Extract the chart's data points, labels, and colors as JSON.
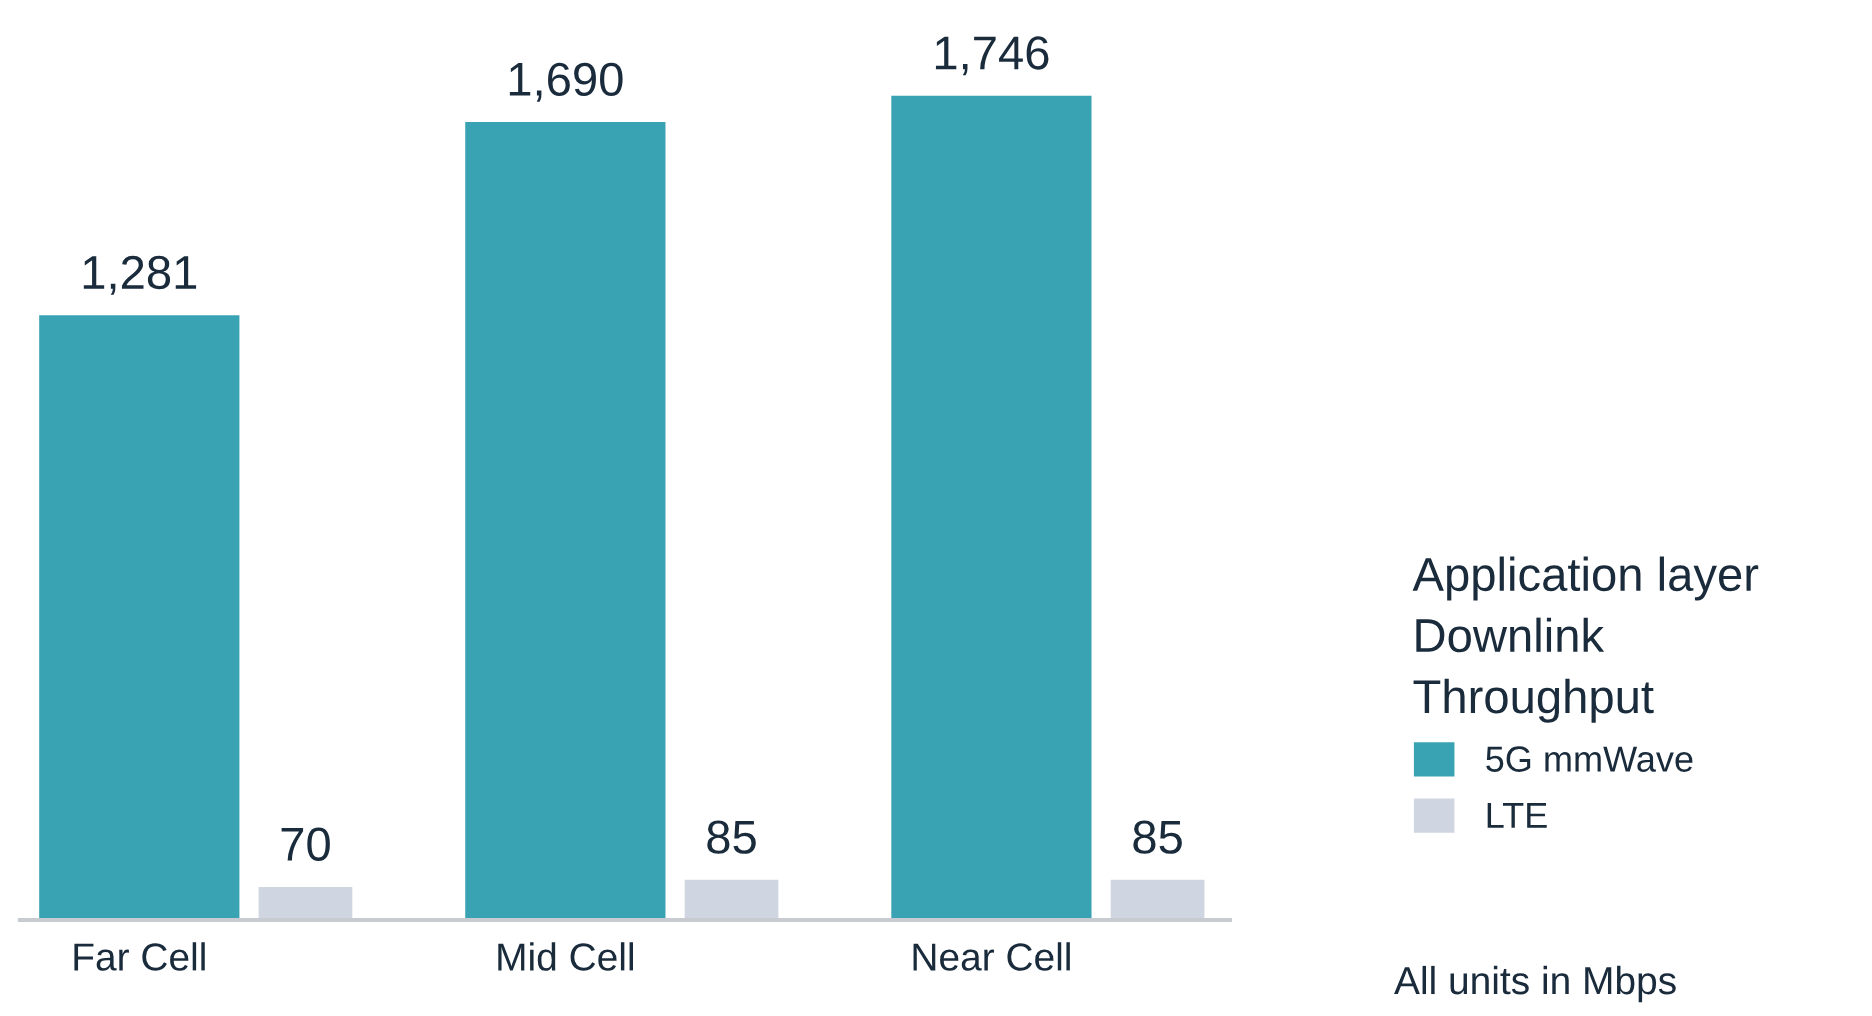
{
  "chart_data": {
    "type": "bar",
    "categories": [
      "Far Cell",
      "Mid Cell",
      "Near Cell"
    ],
    "series": [
      {
        "name": "5G mmWave",
        "color": "#3aa3b3",
        "values": [
          1281,
          1690,
          1746
        ],
        "value_labels": [
          "1,281",
          "1,690",
          "1,746"
        ]
      },
      {
        "name": "LTE",
        "color": "#cfd6e2",
        "values": [
          70,
          85,
          85
        ],
        "value_labels": [
          "70",
          "85",
          "85"
        ]
      }
    ],
    "legend": "right",
    "legend_title": "Application layer\nDownlink\nThroughput",
    "grid": false,
    "annotations": [
      "All units in Mbps"
    ]
  }
}
